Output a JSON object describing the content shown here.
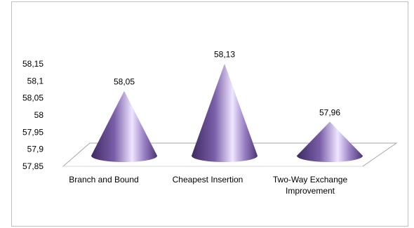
{
  "chart_data": {
    "type": "bar",
    "shape": "cone-3d",
    "title": "",
    "xlabel": "",
    "ylabel": "",
    "categories": [
      "Branch and Bound",
      "Cheapest Insertion",
      "Two-Way Exchange Improvement"
    ],
    "category_lines": [
      [
        "Branch and Bound"
      ],
      [
        "Cheapest Insertion"
      ],
      [
        "Two-Way Exchange",
        "Improvement"
      ]
    ],
    "values": [
      58.05,
      58.13,
      57.96
    ],
    "data_labels": [
      "58,05",
      "58,13",
      "57,96"
    ],
    "ylim": [
      57.85,
      58.15
    ],
    "yticks": [
      {
        "value": 57.85,
        "label": "57,85"
      },
      {
        "value": 57.9,
        "label": "57,9"
      },
      {
        "value": 57.95,
        "label": "57,95"
      },
      {
        "value": 58.0,
        "label": "58"
      },
      {
        "value": 58.05,
        "label": "58,05"
      },
      {
        "value": 58.1,
        "label": "58,1"
      },
      {
        "value": 58.15,
        "label": "58,15"
      }
    ],
    "grid": false,
    "legend": "none",
    "colors": {
      "cone_dark": "#3e2a63",
      "cone_mid": "#7a5fa8",
      "cone_light": "#efe6ff",
      "floor": "#ffffff",
      "floor_edge": "#a6a6a6"
    }
  }
}
